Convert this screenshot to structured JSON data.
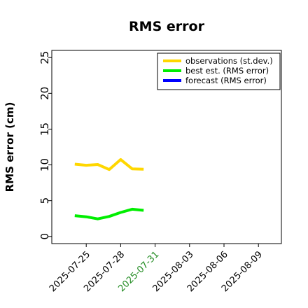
{
  "chart_data": {
    "type": "line",
    "title": "RMS error",
    "ylabel": "RMS error (cm)",
    "xlabel": "",
    "ylim": [
      -1,
      26
    ],
    "xlim": [
      "2025-07-22",
      "2025-08-11"
    ],
    "y_ticks": [
      0,
      5,
      10,
      15,
      20,
      25
    ],
    "x_ticks": [
      {
        "date": "2025-07-25",
        "label": "2025-07-25",
        "color": "#000000"
      },
      {
        "date": "2025-07-28",
        "label": "2025-07-28",
        "color": "#000000"
      },
      {
        "date": "2025-07-31",
        "label": "2025-07-31",
        "color": "#228b22"
      },
      {
        "date": "2025-08-03",
        "label": "2025-08-03",
        "color": "#000000"
      },
      {
        "date": "2025-08-06",
        "label": "2025-08-06",
        "color": "#000000"
      },
      {
        "date": "2025-08-09",
        "label": "2025-08-09",
        "color": "#000000"
      }
    ],
    "grid": false,
    "legend_position": "top-right",
    "series": [
      {
        "name": "observations (st.dev.)",
        "color": "#ffd700",
        "points": [
          {
            "x": "2025-07-24",
            "y": 10.1
          },
          {
            "x": "2025-07-25",
            "y": 9.95
          },
          {
            "x": "2025-07-26",
            "y": 10.05
          },
          {
            "x": "2025-07-27",
            "y": 9.35
          },
          {
            "x": "2025-07-28",
            "y": 10.75
          },
          {
            "x": "2025-07-29",
            "y": 9.45
          },
          {
            "x": "2025-07-30",
            "y": 9.4
          }
        ]
      },
      {
        "name": "best est. (RMS error)",
        "color": "#00ee00",
        "points": [
          {
            "x": "2025-07-24",
            "y": 2.9
          },
          {
            "x": "2025-07-25",
            "y": 2.75
          },
          {
            "x": "2025-07-26",
            "y": 2.45
          },
          {
            "x": "2025-07-27",
            "y": 2.8
          },
          {
            "x": "2025-07-28",
            "y": 3.35
          },
          {
            "x": "2025-07-29",
            "y": 3.8
          },
          {
            "x": "2025-07-30",
            "y": 3.65
          }
        ]
      },
      {
        "name": "forecast (RMS error)",
        "color": "#0000ff",
        "points": []
      }
    ]
  }
}
